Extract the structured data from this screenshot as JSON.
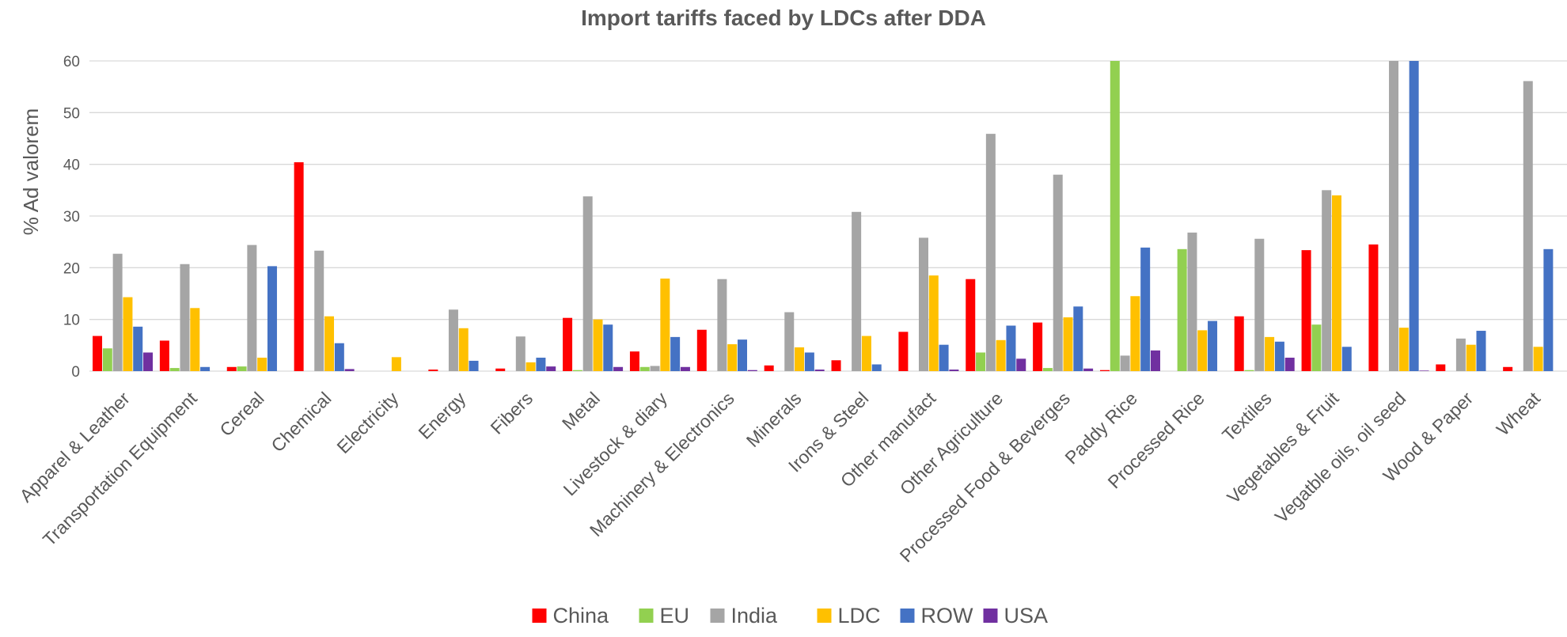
{
  "chart_data": {
    "type": "bar",
    "title": "Import tariffs faced by LDCs after DDA",
    "xlabel": "",
    "ylabel": "% Ad valorem",
    "ylim": [
      0,
      60
    ],
    "yticks": [
      0,
      10,
      20,
      30,
      40,
      50,
      60
    ],
    "grid": true,
    "legend_position": "bottom",
    "categories": [
      "Apparel & Leather",
      "Transportation Equipment",
      "Cereal",
      "Chemical",
      "Electricity",
      "Energy",
      "Fibers",
      "Metal",
      "Livestock & diary",
      "Machinery & Electronics",
      "Minerals",
      "Irons & Steel",
      "Other manufact",
      "Other Agriculture",
      "Processed Food & Beverges",
      "Paddy Rice",
      "Processed Rice",
      "Textiles",
      "Vegetables & Fruit",
      "Vegatble oils, oil seed",
      "Wood & Paper",
      "Wheat"
    ],
    "series": [
      {
        "name": "China",
        "color": "#ff0000",
        "values": [
          6.8,
          5.9,
          0.8,
          40.4,
          0,
          0.3,
          0.5,
          10.3,
          3.8,
          8.0,
          1.1,
          2.1,
          7.6,
          17.8,
          9.4,
          0.2,
          0,
          10.6,
          23.4,
          24.5,
          1.3,
          0.8
        ]
      },
      {
        "name": "EU",
        "color": "#92d050",
        "values": [
          4.4,
          0.6,
          0.9,
          0,
          0,
          0,
          0,
          0.2,
          0.8,
          0,
          0,
          0,
          0,
          3.6,
          0.6,
          60,
          23.6,
          0.2,
          9.0,
          0,
          0,
          0
        ]
      },
      {
        "name": "India",
        "color": "#a5a5a5",
        "values": [
          22.7,
          20.7,
          24.4,
          23.3,
          0,
          11.9,
          6.7,
          33.8,
          1.0,
          17.8,
          11.4,
          30.8,
          25.8,
          45.9,
          38.0,
          3.0,
          26.8,
          25.6,
          35.0,
          60,
          6.3,
          56.1
        ]
      },
      {
        "name": "LDC",
        "color": "#ffc000",
        "values": [
          14.3,
          12.2,
          2.6,
          10.6,
          2.7,
          8.3,
          1.7,
          10.0,
          17.9,
          5.2,
          4.6,
          6.8,
          18.5,
          6.0,
          10.4,
          14.5,
          7.9,
          6.6,
          34.0,
          8.4,
          5.1,
          4.7
        ]
      },
      {
        "name": "ROW",
        "color": "#4472c4",
        "values": [
          8.6,
          0.8,
          20.3,
          5.4,
          0,
          2.0,
          2.6,
          9.0,
          6.6,
          6.1,
          3.6,
          1.3,
          5.1,
          8.8,
          12.5,
          23.9,
          9.7,
          5.7,
          4.7,
          60,
          7.8,
          23.6
        ]
      },
      {
        "name": "USA",
        "color": "#7030a0",
        "values": [
          3.6,
          0,
          0,
          0.4,
          0,
          0,
          0.9,
          0.8,
          0.8,
          0.2,
          0.3,
          0,
          0.3,
          2.4,
          0.5,
          4.0,
          0,
          2.6,
          0,
          0.1,
          0,
          0
        ]
      }
    ]
  }
}
